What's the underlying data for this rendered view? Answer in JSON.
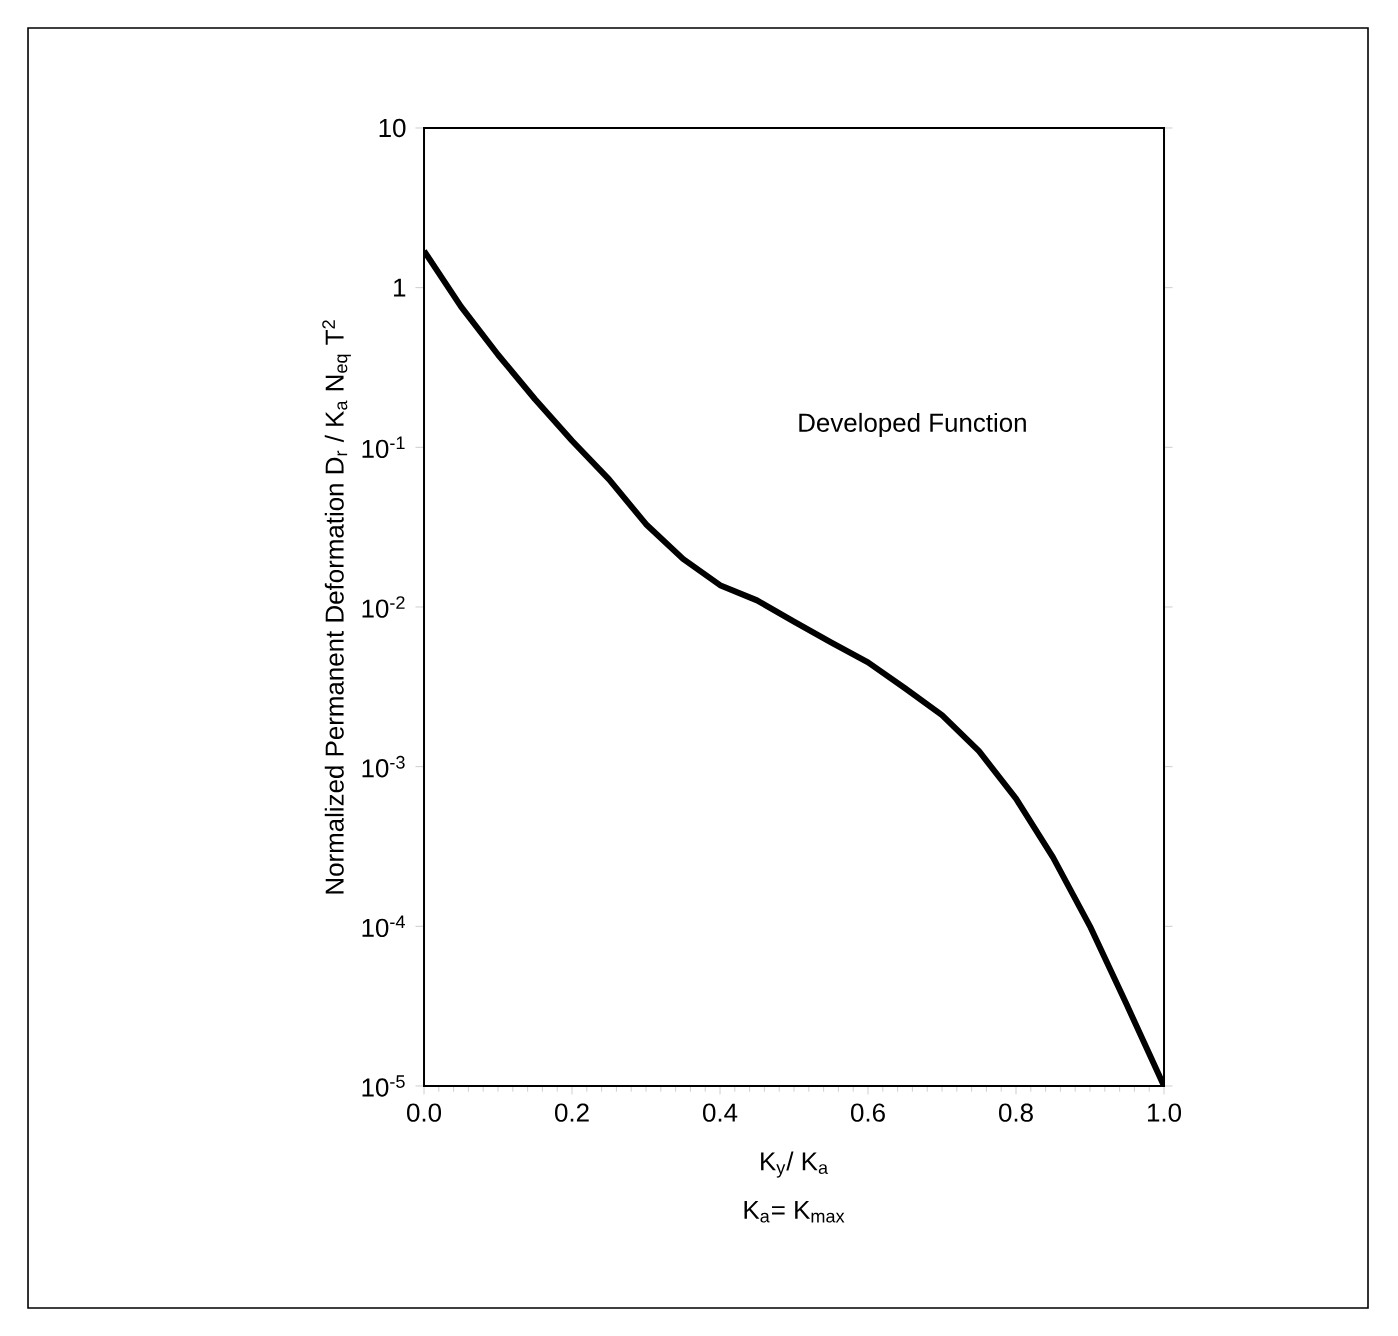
{
  "chart_data": {
    "type": "line",
    "xlabel": "K$_{y}$/ K$_{a}$",
    "ylabel": "Normalized Permanent Deformation D$_{r}$ / K$_{a}$ N$_{eq}$ T$^{2}$",
    "annotations": [
      "K$_{a}$= K$_{max}$"
    ],
    "log": "y",
    "xlim": [
      0,
      1
    ],
    "ylim": [
      1e-05,
      10
    ],
    "xticks": [
      {
        "value": 0,
        "label": "0.0"
      },
      0.2,
      0.4,
      0.6,
      0.8,
      {
        "value": 1,
        "label": "1.0"
      }
    ],
    "yticks": [
      {
        "value": 1e-05,
        "label": "10$^{-5}$"
      },
      {
        "value": 0.0001,
        "label": "10$^{-4}$"
      },
      {
        "value": 0.001,
        "label": "10$^{-3}$"
      },
      {
        "value": 0.01,
        "label": "10$^{-2}$"
      },
      {
        "value": 0.1,
        "label": "10$^{-1}$"
      },
      1,
      10
    ],
    "x": [
      0,
      0.05,
      0.1,
      0.15,
      0.2,
      0.25,
      0.3,
      0.35,
      0.4,
      0.45,
      0.5,
      0.55,
      0.6,
      0.65,
      0.7,
      0.75,
      0.8,
      0.85,
      0.9,
      0.95,
      1.0
    ],
    "series": [
      {
        "name": "Developed Function",
        "color": "#000000",
        "values": [
          1.7,
          0.76,
          0.38,
          0.2,
          0.11,
          0.063,
          0.033,
          0.02,
          0.0137,
          0.011,
          0.0081,
          0.006,
          0.0045,
          0.0031,
          0.0021,
          0.00125,
          0.00063,
          0.00027,
          0.0001,
          3.2e-05,
          1e-05
        ]
      }
    ],
    "grid": false,
    "legend": false,
    "marker": "none",
    "line_style": "solid"
  }
}
